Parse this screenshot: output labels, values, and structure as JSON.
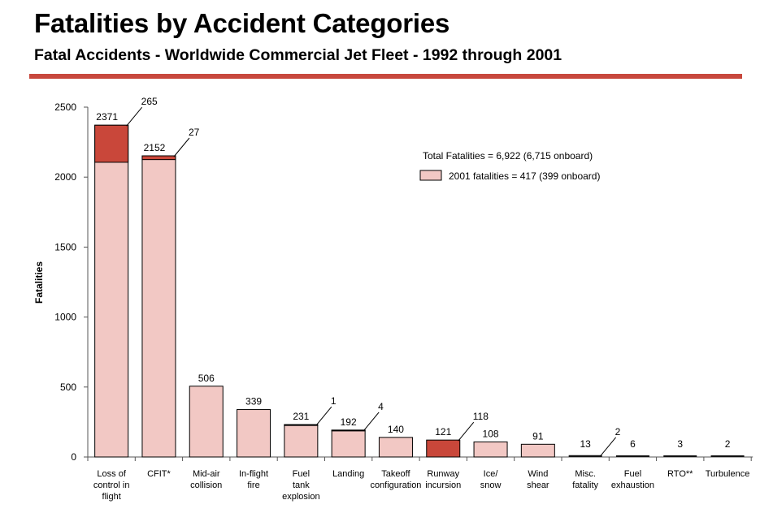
{
  "header": {
    "title": "Fatalities by Accident Categories",
    "subtitle": "Fatal Accidents - Worldwide Commercial Jet Fleet - 1992 through 2001"
  },
  "colors": {
    "rule": "#c8483d",
    "base_fill": "#f2c8c4",
    "highlight_fill": "#c9473a",
    "dark_fill": "#111111"
  },
  "chart_data": {
    "type": "bar",
    "title": "",
    "ylabel": "Fatalities",
    "xlabel": "",
    "ylim": [
      0,
      2500
    ],
    "yticks": [
      0,
      500,
      1000,
      1500,
      2000,
      2500
    ],
    "grid": false,
    "legend": {
      "total": "Total Fatalities = 6,922 (6,715 onboard)",
      "fatal_2001": "2001 fatalities = 417 (399 onboard)"
    },
    "categories": [
      [
        "Loss of",
        "control in",
        "flight"
      ],
      [
        "CFIT*"
      ],
      [
        "Mid-air",
        "collision"
      ],
      [
        "In-flight",
        "fire"
      ],
      [
        "Fuel",
        "tank",
        "explosion"
      ],
      [
        "Landing"
      ],
      [
        "Takeoff",
        "configuration"
      ],
      [
        "Runway",
        "incursion"
      ],
      [
        "Ice/",
        "snow"
      ],
      [
        "Wind",
        "shear"
      ],
      [
        "Misc.",
        "fatality"
      ],
      [
        "Fuel",
        "exhaustion"
      ],
      [
        "RTO**"
      ],
      [
        "Turbulence"
      ]
    ],
    "series": [
      {
        "name": "Total Fatalities = 6,922 (6,715 onboard)",
        "values": [
          2371,
          2152,
          506,
          339,
          231,
          192,
          140,
          121,
          108,
          91,
          13,
          6,
          3,
          2
        ]
      },
      {
        "name": "2001 fatalities = 417 (399 onboard)",
        "values": [
          265,
          27,
          0,
          0,
          1,
          4,
          0,
          118,
          0,
          0,
          2,
          0,
          0,
          0
        ]
      }
    ],
    "value_labels": [
      "2371",
      "2152",
      "506",
      "339",
      "231",
      "192",
      "140",
      "121",
      "108",
      "91",
      "13",
      "6",
      "3",
      "2"
    ],
    "callout_labels": [
      "265",
      "27",
      "",
      "",
      "1",
      "4",
      "",
      "118",
      "",
      "",
      "2",
      "",
      "",
      ""
    ],
    "bar_styles": [
      "split",
      "split",
      "base",
      "base",
      "split",
      "split",
      "base",
      "highlight",
      "base",
      "base",
      "dark",
      "dark",
      "dark",
      "dark"
    ]
  }
}
